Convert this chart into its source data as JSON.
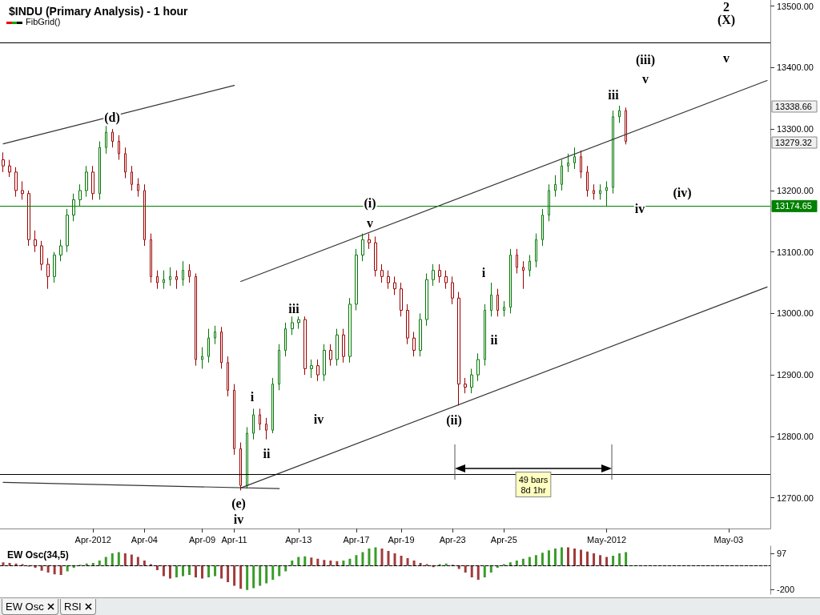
{
  "chart_data": [
    {
      "type": "candlestick",
      "title": "$INDU (Primary Analysis) - 1 hour",
      "categories": [
        null,
        null,
        null,
        null,
        null,
        null,
        null,
        null,
        null,
        null,
        null,
        null,
        null,
        null,
        "Apr-2012",
        null,
        null,
        null,
        null,
        null,
        null,
        null,
        "Apr-04",
        null,
        null,
        null,
        null,
        null,
        null,
        null,
        null,
        "Apr-09",
        null,
        null,
        null,
        null,
        "Apr-11",
        null,
        null,
        null,
        null,
        null,
        null,
        null,
        null,
        null,
        "Apr-13",
        null,
        null,
        null,
        null,
        null,
        null,
        null,
        null,
        "Apr-17",
        null,
        null,
        null,
        null,
        null,
        null,
        "Apr-19",
        null,
        null,
        null,
        null,
        null,
        null,
        null,
        "Apr-23",
        null,
        null,
        null,
        null,
        null,
        null,
        null,
        "Apr-25",
        null,
        null,
        null,
        null,
        null,
        null,
        null,
        null,
        null,
        null,
        null,
        null,
        null,
        null,
        null,
        "May-2012",
        null,
        null,
        null,
        null,
        null,
        null,
        null,
        null,
        null,
        null,
        null,
        null,
        null,
        null,
        null,
        null,
        null,
        null,
        "May-03",
        null,
        null,
        null,
        null,
        null,
        null
      ],
      "ylim": [
        12650,
        13510
      ],
      "yticks": [
        {
          "value": 12700,
          "label": "12700.00"
        },
        {
          "value": 12800,
          "label": "12800.00"
        },
        {
          "value": 12900,
          "label": "12900.00"
        },
        {
          "value": 13000,
          "label": "13000.00"
        },
        {
          "value": 13100,
          "label": "13100.00"
        },
        {
          "value": 13200,
          "label": "13200.00"
        },
        {
          "value": 13300,
          "label": "13300.00"
        },
        {
          "value": 13400,
          "label": "13400.00"
        },
        {
          "value": 13500,
          "label": "13500.00"
        }
      ],
      "grid": false,
      "line_style": "solid",
      "series": [
        {
          "ohlc": [
            [
              13250,
              13262,
              13230,
              13240
            ],
            [
              13240,
              13250,
              13222,
              13230
            ],
            [
              13230,
              13238,
              13190,
              13200
            ],
            [
              13200,
              13215,
              13185,
              13195
            ],
            [
              13195,
              13200,
              13110,
              13120
            ],
            [
              13120,
              13135,
              13100,
              13110
            ],
            [
              13110,
              13118,
              13070,
              13080
            ],
            [
              13080,
              13090,
              13040,
              13060
            ],
            [
              13060,
              13100,
              13050,
              13095
            ],
            [
              13095,
              13120,
              13085,
              13110
            ],
            [
              13110,
              13170,
              13100,
              13160
            ],
            [
              13160,
              13195,
              13150,
              13185
            ],
            [
              13185,
              13210,
              13175,
              13200
            ],
            [
              13200,
              13240,
              13190,
              13230
            ],
            [
              13230,
              13240,
              13185,
              13195
            ],
            [
              13195,
              13280,
              13185,
              13270
            ],
            [
              13270,
              13305,
              13260,
              13295
            ],
            [
              13295,
              13300,
              13270,
              13280
            ],
            [
              13280,
              13290,
              13250,
              13260
            ],
            [
              13260,
              13270,
              13220,
              13230
            ],
            [
              13230,
              13240,
              13200,
              13210
            ],
            [
              13210,
              13220,
              13190,
              13200
            ],
            [
              13200,
              13210,
              13110,
              13120
            ],
            [
              13120,
              13130,
              13050,
              13060
            ],
            [
              13060,
              13070,
              13040,
              13050
            ],
            [
              13050,
              13070,
              13040,
              13055
            ],
            [
              13055,
              13075,
              13045,
              13060
            ],
            [
              13060,
              13070,
              13040,
              13055
            ],
            [
              13055,
              13085,
              13045,
              13070
            ],
            [
              13070,
              13080,
              13050,
              13060
            ],
            [
              13060,
              13065,
              12915,
              12925
            ],
            [
              12925,
              12945,
              12910,
              12930
            ],
            [
              12930,
              12975,
              12920,
              12960
            ],
            [
              12960,
              12980,
              12950,
              12970
            ],
            [
              12970,
              12978,
              12910,
              12920
            ],
            [
              12920,
              12930,
              12865,
              12875
            ],
            [
              12875,
              12885,
              12770,
              12780
            ],
            [
              12780,
              12790,
              12712,
              12720
            ],
            [
              12720,
              12815,
              12715,
              12805
            ],
            [
              12805,
              12845,
              12795,
              12835
            ],
            [
              12835,
              12845,
              12810,
              12820
            ],
            [
              12820,
              12830,
              12795,
              12810
            ],
            [
              12810,
              12895,
              12805,
              12885
            ],
            [
              12885,
              12950,
              12875,
              12940
            ],
            [
              12940,
              12985,
              12930,
              12975
            ],
            [
              12975,
              12995,
              12965,
              12985
            ],
            [
              12985,
              12995,
              12975,
              12990
            ],
            [
              12990,
              12995,
              12900,
              12910
            ],
            [
              12910,
              12925,
              12895,
              12915
            ],
            [
              12915,
              12925,
              12890,
              12900
            ],
            [
              12900,
              12950,
              12890,
              12940
            ],
            [
              12940,
              12950,
              12915,
              12925
            ],
            [
              12925,
              12975,
              12915,
              12965
            ],
            [
              12965,
              12975,
              12920,
              12930
            ],
            [
              12930,
              13025,
              12920,
              13015
            ],
            [
              13015,
              13105,
              13005,
              13095
            ],
            [
              13095,
              13130,
              13085,
              13120
            ],
            [
              13120,
              13130,
              13105,
              13115
            ],
            [
              13115,
              13125,
              13060,
              13070
            ],
            [
              13070,
              13080,
              13050,
              13060
            ],
            [
              13060,
              13070,
              13040,
              13050
            ],
            [
              13050,
              13060,
              13030,
              13040
            ],
            [
              13040,
              13050,
              12995,
              13005
            ],
            [
              13005,
              13015,
              12950,
              12960
            ],
            [
              12960,
              12970,
              12930,
              12940
            ],
            [
              12940,
              13000,
              12930,
              12990
            ],
            [
              12990,
              13065,
              12980,
              13055
            ],
            [
              13055,
              13080,
              13045,
              13070
            ],
            [
              13070,
              13080,
              13050,
              13060
            ],
            [
              13060,
              13070,
              13040,
              13050
            ],
            [
              13050,
              13060,
              13015,
              13025
            ],
            [
              13025,
              13035,
              12850,
              12885
            ],
            [
              12885,
              12895,
              12870,
              12880
            ],
            [
              12880,
              12910,
              12870,
              12900
            ],
            [
              12900,
              12935,
              12890,
              12925
            ],
            [
              12925,
              13015,
              12915,
              13005
            ],
            [
              13005,
              13050,
              12995,
              13030
            ],
            [
              13030,
              13040,
              12995,
              13005
            ],
            [
              13005,
              13020,
              12995,
              13010
            ],
            [
              13010,
              13105,
              13000,
              13095
            ],
            [
              13095,
              13105,
              13065,
              13075
            ],
            [
              13075,
              13085,
              13040,
              13070
            ],
            [
              13070,
              13095,
              13060,
              13085
            ],
            [
              13085,
              13130,
              13075,
              13120
            ],
            [
              13120,
              13170,
              13110,
              13160
            ],
            [
              13160,
              13210,
              13150,
              13200
            ],
            [
              13200,
              13225,
              13190,
              13210
            ],
            [
              13210,
              13250,
              13200,
              13240
            ],
            [
              13240,
              13260,
              13230,
              13245
            ],
            [
              13245,
              13270,
              13235,
              13255
            ],
            [
              13255,
              13265,
              13220,
              13230
            ],
            [
              13230,
              13240,
              13190,
              13200
            ],
            [
              13200,
              13210,
              13185,
              13195
            ],
            [
              13195,
              13210,
              13185,
              13200
            ],
            [
              13200,
              13215,
              13175,
              13205
            ],
            [
              13205,
              13330,
              13195,
              13320
            ],
            [
              13320,
              13338,
              13310,
              13330
            ],
            [
              13330,
              13335,
              13275,
              13280
            ],
            null,
            null,
            null,
            null,
            null,
            null,
            null,
            null,
            null,
            null,
            null,
            null,
            null,
            null,
            null,
            null,
            null,
            null,
            null,
            null,
            null,
            null
          ],
          "colors": [
            "#990000",
            "#990000",
            "#990000",
            "#990000",
            "#990000",
            "#990000",
            "#990000",
            "#990000",
            "#007700",
            "#007700",
            "#007700",
            "#007700",
            "#007700",
            "#007700",
            "#990000",
            "#007700",
            "#007700",
            "#990000",
            "#990000",
            "#990000",
            "#990000",
            "#990000",
            "#990000",
            "#990000",
            "#990000",
            "#007700",
            "#007700",
            "#990000",
            "#007700",
            "#990000",
            "#990000",
            "#007700",
            "#007700",
            "#007700",
            "#990000",
            "#990000",
            "#990000",
            "#990000",
            "#007700",
            "#007700",
            "#990000",
            "#990000",
            "#007700",
            "#007700",
            "#007700",
            "#007700",
            "#007700",
            "#990000",
            "#007700",
            "#990000",
            "#007700",
            "#990000",
            "#007700",
            "#990000",
            "#007700",
            "#007700",
            "#007700",
            "#990000",
            "#990000",
            "#990000",
            "#990000",
            "#990000",
            "#990000",
            "#990000",
            "#990000",
            "#007700",
            "#007700",
            "#007700",
            "#990000",
            "#990000",
            "#990000",
            "#990000",
            "#990000",
            "#007700",
            "#007700",
            "#007700",
            "#007700",
            "#990000",
            "#007700",
            "#007700",
            "#990000",
            "#990000",
            "#007700",
            "#007700",
            "#007700",
            "#007700",
            "#007700",
            "#007700",
            "#007700",
            "#007700",
            "#990000",
            "#990000",
            "#990000",
            "#007700",
            "#007700",
            "#007700",
            "#007700",
            "#990000",
            null,
            null,
            null,
            null,
            null,
            null,
            null,
            null,
            null,
            null,
            null,
            null,
            null,
            null,
            null,
            null,
            null,
            null,
            null,
            null,
            null,
            null
          ]
        },
        {
          "type": "line",
          "color": "#333333",
          "values": [
            13276,
            null,
            null,
            null,
            null,
            null,
            null,
            null,
            null,
            null,
            null,
            null,
            null,
            null,
            null,
            null,
            null,
            null,
            null,
            null,
            null,
            null,
            null,
            null,
            null,
            null,
            null,
            null,
            null,
            null,
            null,
            null,
            null,
            null,
            null,
            null,
            13371,
            null,
            null,
            null,
            null,
            null,
            null,
            null,
            null,
            null,
            null,
            null,
            null,
            null,
            null,
            null,
            null,
            null,
            null,
            null,
            null,
            null,
            null,
            null,
            null,
            null,
            null,
            null,
            null,
            null,
            null,
            null,
            null,
            null,
            null,
            null,
            null,
            null,
            null,
            null,
            null,
            null,
            null,
            null,
            null,
            null,
            null,
            null,
            null,
            null,
            null,
            null,
            null,
            null,
            null,
            null,
            null,
            null,
            null,
            null,
            null,
            null,
            null,
            null,
            null,
            null,
            null,
            null,
            null,
            null,
            null,
            null,
            null,
            null,
            null,
            null,
            null,
            null,
            null,
            null,
            null,
            null,
            null,
            null
          ]
        },
        {
          "type": "line",
          "color": "#333333",
          "values": [
            null,
            null,
            null,
            null,
            null,
            null,
            null,
            null,
            null,
            null,
            null,
            null,
            null,
            null,
            null,
            null,
            null,
            null,
            null,
            null,
            null,
            null,
            null,
            null,
            null,
            null,
            null,
            null,
            null,
            null,
            null,
            null,
            null,
            null,
            null,
            null,
            null,
            13052,
            null,
            null,
            null,
            null,
            null,
            null,
            null,
            null,
            null,
            null,
            null,
            null,
            null,
            null,
            null,
            null,
            null,
            null,
            null,
            null,
            null,
            null,
            null,
            null,
            null,
            null,
            null,
            null,
            null,
            null,
            null,
            null,
            null,
            null,
            null,
            null,
            null,
            null,
            null,
            null,
            null,
            null,
            null,
            null,
            null,
            null,
            null,
            null,
            null,
            null,
            null,
            null,
            null,
            null,
            null,
            null,
            null,
            null,
            null,
            null,
            null,
            null,
            null,
            null,
            null,
            null,
            null,
            null,
            null,
            null,
            null,
            null,
            null,
            null,
            null,
            null,
            null,
            null,
            null,
            null,
            null,
            13379
          ]
        },
        {
          "type": "line",
          "color": "#333333",
          "values": [
            null,
            null,
            null,
            null,
            null,
            null,
            null,
            null,
            null,
            null,
            null,
            null,
            null,
            null,
            null,
            null,
            null,
            null,
            null,
            null,
            null,
            null,
            null,
            null,
            null,
            null,
            null,
            null,
            null,
            null,
            null,
            null,
            null,
            null,
            null,
            null,
            null,
            12716,
            null,
            null,
            null,
            null,
            null,
            null,
            null,
            null,
            null,
            null,
            null,
            null,
            null,
            null,
            null,
            null,
            null,
            null,
            null,
            null,
            null,
            null,
            null,
            null,
            null,
            null,
            null,
            null,
            null,
            null,
            null,
            null,
            null,
            null,
            null,
            null,
            null,
            null,
            null,
            null,
            null,
            null,
            null,
            null,
            null,
            null,
            null,
            null,
            null,
            null,
            null,
            null,
            null,
            null,
            null,
            null,
            null,
            null,
            null,
            null,
            null,
            null,
            null,
            null,
            null,
            null,
            null,
            null,
            null,
            null,
            null,
            null,
            null,
            null,
            null,
            null,
            null,
            null,
            null,
            null,
            null,
            13043
          ]
        },
        {
          "type": "line",
          "color": "#333333",
          "values": [
            12725,
            null,
            null,
            null,
            null,
            null,
            null,
            null,
            null,
            null,
            null,
            null,
            null,
            null,
            null,
            null,
            null,
            null,
            null,
            null,
            null,
            null,
            null,
            null,
            null,
            null,
            null,
            null,
            null,
            null,
            null,
            null,
            null,
            null,
            null,
            null,
            null,
            null,
            null,
            null,
            null,
            null,
            null,
            12715,
            null,
            null,
            null,
            null,
            null,
            null,
            null,
            null,
            null,
            null,
            null,
            null,
            null,
            null,
            null,
            null,
            null,
            null,
            null,
            null,
            null,
            null,
            null,
            null,
            null,
            null,
            null,
            null,
            null,
            null,
            null,
            null,
            null,
            null,
            null,
            null,
            null,
            null,
            null,
            null,
            null,
            null,
            null,
            null,
            null,
            null,
            null,
            null,
            null,
            null,
            null,
            null,
            null,
            null,
            null,
            null,
            null,
            null,
            null,
            null,
            null,
            null,
            null,
            null,
            null,
            null,
            null,
            null,
            null,
            null,
            null,
            null,
            null,
            null,
            null,
            null
          ]
        }
      ],
      "ref_lines": [
        {
          "axis": "y",
          "value": 13440,
          "color": "#000000"
        },
        {
          "axis": "y",
          "value": 12738,
          "color": "#000000"
        },
        {
          "axis": "y",
          "value": 13174.65,
          "label": "13174.65",
          "color": "#008000"
        }
      ],
      "annotations": [
        "FibGrid()",
        "(d)",
        "(e)",
        "iv",
        "i",
        "ii",
        "iii",
        "iv",
        "(i)",
        "v",
        "(ii)",
        "i",
        "ii",
        "iii",
        "iv",
        "(iii)",
        "v",
        "(iv)",
        "2",
        "(X)",
        "v",
        "49 bars\n8d 1hr",
        "13338.66",
        "13279.32"
      ]
    },
    {
      "type": "bar",
      "title": "EW Osc(34,5)",
      "ylim": [
        -240,
        160
      ],
      "yticks": [
        -200,
        97
      ],
      "tick_labels": "y",
      "categories": [
        null,
        null,
        null,
        null,
        null,
        null,
        null,
        null,
        null,
        null,
        null,
        null,
        null,
        null,
        null,
        null,
        null,
        null,
        null,
        null,
        null,
        null,
        null,
        null,
        null,
        null,
        null,
        null,
        null,
        null,
        null,
        null,
        null,
        null,
        null,
        null,
        null,
        null,
        null,
        null,
        null,
        null,
        null,
        null,
        null,
        null,
        null,
        null,
        null,
        null,
        null,
        null,
        null,
        null,
        null,
        null,
        null,
        null,
        null,
        null,
        null,
        null,
        null,
        null,
        null,
        null,
        null,
        null,
        null,
        null,
        null,
        null,
        null,
        null,
        null,
        null,
        null,
        null,
        null,
        null,
        null,
        null,
        null,
        null,
        null,
        null,
        null,
        null,
        null,
        null,
        null,
        null,
        null,
        null,
        null,
        null,
        null,
        null,
        null,
        null,
        null,
        null,
        null,
        null,
        null,
        null,
        null,
        null,
        null,
        null,
        null,
        null,
        null,
        null,
        null,
        null,
        null,
        null,
        null,
        null
      ],
      "values": [
        25,
        20,
        15,
        10,
        -10,
        -20,
        -45,
        -60,
        -75,
        -80,
        -50,
        -20,
        5,
        15,
        20,
        40,
        70,
        100,
        110,
        100,
        90,
        70,
        40,
        10,
        -40,
        -90,
        -110,
        -100,
        -90,
        -80,
        -100,
        -110,
        -100,
        -90,
        -110,
        -140,
        -170,
        -195,
        -205,
        -190,
        -170,
        -150,
        -120,
        -90,
        -50,
        40,
        70,
        75,
        65,
        55,
        45,
        40,
        35,
        40,
        55,
        85,
        110,
        140,
        150,
        140,
        120,
        100,
        80,
        60,
        40,
        20,
        10,
        -15,
        10,
        15,
        5,
        -30,
        -60,
        -100,
        -120,
        -100,
        -60,
        -20,
        10,
        25,
        40,
        55,
        70,
        85,
        105,
        125,
        140,
        150,
        150,
        140,
        130,
        115,
        100,
        85,
        70,
        80,
        100,
        110,
        null,
        null,
        null,
        null,
        null,
        null,
        null,
        null,
        null,
        null,
        null,
        null,
        null,
        null,
        null,
        null,
        null,
        null,
        null,
        null,
        null,
        null
      ],
      "colors": [
        "#a33a3a",
        "#a33a3a",
        "#a33a3a",
        "#a33a3a",
        "#a33a3a",
        "#a33a3a",
        "#a33a3a",
        "#a33a3a",
        "#a33a3a",
        "#a33a3a",
        "#3a9c2a",
        "#3a9c2a",
        "#3a9c2a",
        "#3a9c2a",
        "#3a9c2a",
        "#3a9c2a",
        "#3a9c2a",
        "#3a9c2a",
        "#3a9c2a",
        "#a33a3a",
        "#a33a3a",
        "#a33a3a",
        "#a33a3a",
        "#a33a3a",
        "#a33a3a",
        "#a33a3a",
        "#a33a3a",
        "#3a9c2a",
        "#3a9c2a",
        "#3a9c2a",
        "#a33a3a",
        "#a33a3a",
        "#3a9c2a",
        "#3a9c2a",
        "#a33a3a",
        "#a33a3a",
        "#a33a3a",
        "#a33a3a",
        "#3a9c2a",
        "#3a9c2a",
        "#3a9c2a",
        "#3a9c2a",
        "#3a9c2a",
        "#3a9c2a",
        "#3a9c2a",
        "#3a9c2a",
        "#3a9c2a",
        "#3a9c2a",
        "#a33a3a",
        "#a33a3a",
        "#a33a3a",
        "#a33a3a",
        "#a33a3a",
        "#3a9c2a",
        "#3a9c2a",
        "#3a9c2a",
        "#3a9c2a",
        "#3a9c2a",
        "#3a9c2a",
        "#a33a3a",
        "#a33a3a",
        "#a33a3a",
        "#a33a3a",
        "#a33a3a",
        "#a33a3a",
        "#a33a3a",
        "#a33a3a",
        "#a33a3a",
        "#3a9c2a",
        "#3a9c2a",
        "#a33a3a",
        "#a33a3a",
        "#a33a3a",
        "#a33a3a",
        "#a33a3a",
        "#3a9c2a",
        "#3a9c2a",
        "#3a9c2a",
        "#3a9c2a",
        "#3a9c2a",
        "#3a9c2a",
        "#3a9c2a",
        "#3a9c2a",
        "#3a9c2a",
        "#3a9c2a",
        "#3a9c2a",
        "#3a9c2a",
        "#3a9c2a",
        "#a33a3a",
        "#a33a3a",
        "#a33a3a",
        "#a33a3a",
        "#a33a3a",
        "#a33a3a",
        "#a33a3a",
        "#3a9c2a",
        "#3a9c2a",
        "#3a9c2a",
        null,
        null,
        null,
        null,
        null,
        null,
        null,
        null,
        null,
        null,
        null,
        null,
        null,
        null,
        null,
        null,
        null,
        null,
        null,
        null,
        null,
        null
      ],
      "ref_lines": [
        {
          "axis": "y",
          "value": 0,
          "color": "#000000",
          "line_style": "dashed"
        }
      ],
      "annotations": [
        "EW Osc",
        "RSI"
      ]
    }
  ]
}
